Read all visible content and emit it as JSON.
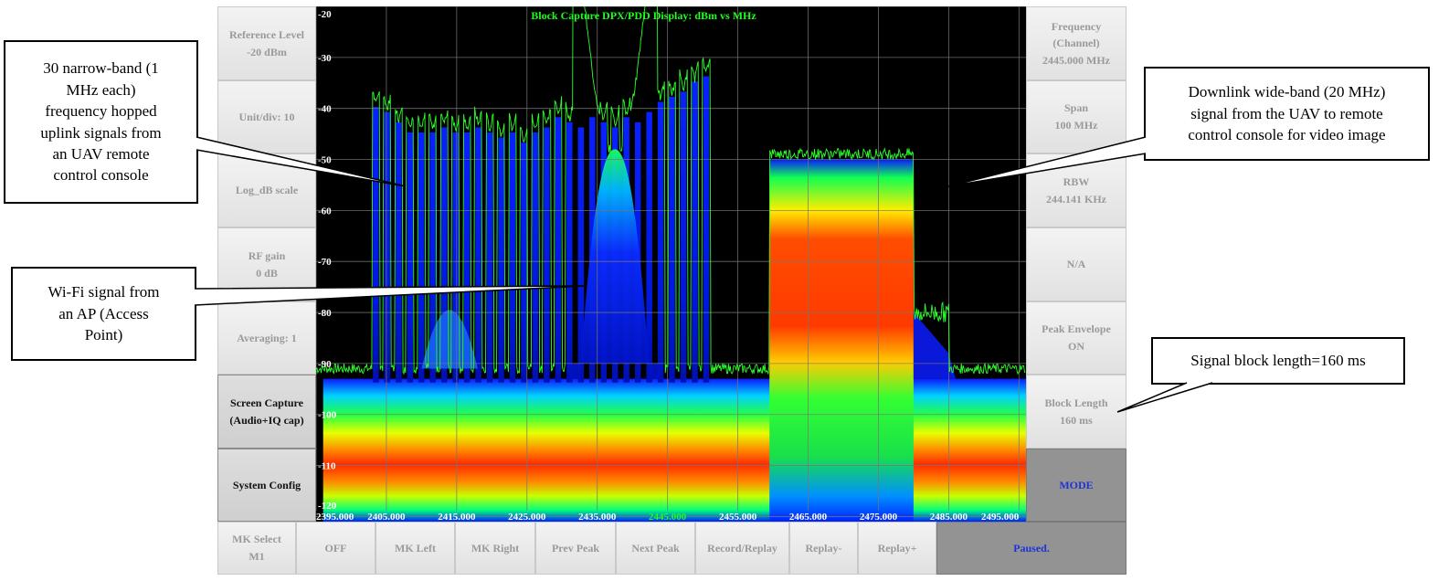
{
  "left_panel": [
    {
      "label": "Reference Level\n-20 dBm"
    },
    {
      "label": "Unit/div: 10"
    },
    {
      "label": "Log_dB scale"
    },
    {
      "label": "RF gain\n0 dB"
    },
    {
      "label": "Averaging: 1"
    },
    {
      "label": "Screen Capture\n(Audio+IQ cap)"
    },
    {
      "label": "System Config"
    }
  ],
  "right_panel": [
    {
      "label": "Frequency\n(Channel)\n2445.000 MHz"
    },
    {
      "label": "Span\n100 MHz"
    },
    {
      "label": "RBW\n244.141 KHz"
    },
    {
      "label": "N/A"
    },
    {
      "label": "Peak Envelope\nON"
    },
    {
      "label": "Block Length\n160 ms"
    },
    {
      "label": "MODE"
    }
  ],
  "bottom_bar": [
    {
      "label": "MK Select\nM1"
    },
    {
      "label": "OFF"
    },
    {
      "label": "MK Left"
    },
    {
      "label": "MK Right"
    },
    {
      "label": "Prev Peak"
    },
    {
      "label": "Next Peak"
    },
    {
      "label": "Record/Replay"
    },
    {
      "label": "Replay-"
    },
    {
      "label": "Replay+"
    }
  ],
  "status": {
    "label": "Paused."
  },
  "callouts": {
    "uplink": "30 narrow-band (1\nMHz each)\nfrequency hopped\nuplink signals from\nan UAV remote\ncontrol console",
    "wifi": "Wi-Fi signal from\nan AP (Access\nPoint)",
    "downlink": "Downlink wide-band (20 MHz)\nsignal from the UAV to remote\ncontrol console for video image",
    "block": "Signal block length=160 ms"
  },
  "chart_data": {
    "type": "area",
    "title": "Block Capture DPX/PDD Display: dBm vs MHz",
    "xlabel": "",
    "ylabel": "",
    "x_ticks": [
      "2395.000",
      "2405.000",
      "2415.000",
      "2425.000",
      "2435.000",
      "2445.000",
      "2455.000",
      "2465.000",
      "2475.000",
      "2485.000",
      "2495.000"
    ],
    "x_range": [
      2395,
      2496
    ],
    "y_ticks": [
      "-20",
      "-30",
      "-40",
      "-50",
      "-60",
      "-70",
      "-80",
      "-90",
      "-100",
      "-110",
      "-120"
    ],
    "y_range": [
      -121,
      -20
    ],
    "highlight_tick": "2445.000",
    "grid": true,
    "colors": {
      "peak_trace": "#2cff2c",
      "title": "#1dff1d",
      "highlight_tick": "#1dff1d",
      "tick_text": "#ffffff"
    },
    "noise_floor_dbm": -93,
    "hopping_signals": {
      "start_mhz": 2403.5,
      "end_mhz": 2450.5,
      "count": 30,
      "width_mhz": 1,
      "peak_dbm": [
        -39,
        -40,
        -42,
        -44,
        -44,
        -44,
        -43,
        -44,
        -44,
        -43,
        -44,
        -45,
        -44,
        -46,
        -44,
        -43,
        -41,
        -42,
        -43,
        -41,
        -42,
        -43,
        -41,
        -42,
        -40,
        -38,
        -37,
        -36,
        -34,
        -33
      ]
    },
    "wifi_signal": {
      "center_mhz": 2437.5,
      "width_mhz": 10,
      "peak_dbm": -48
    },
    "downlink_signal": {
      "start_mhz": 2459.5,
      "end_mhz": 2480,
      "level_dbm": -50
    },
    "block_length_ms": 160
  }
}
